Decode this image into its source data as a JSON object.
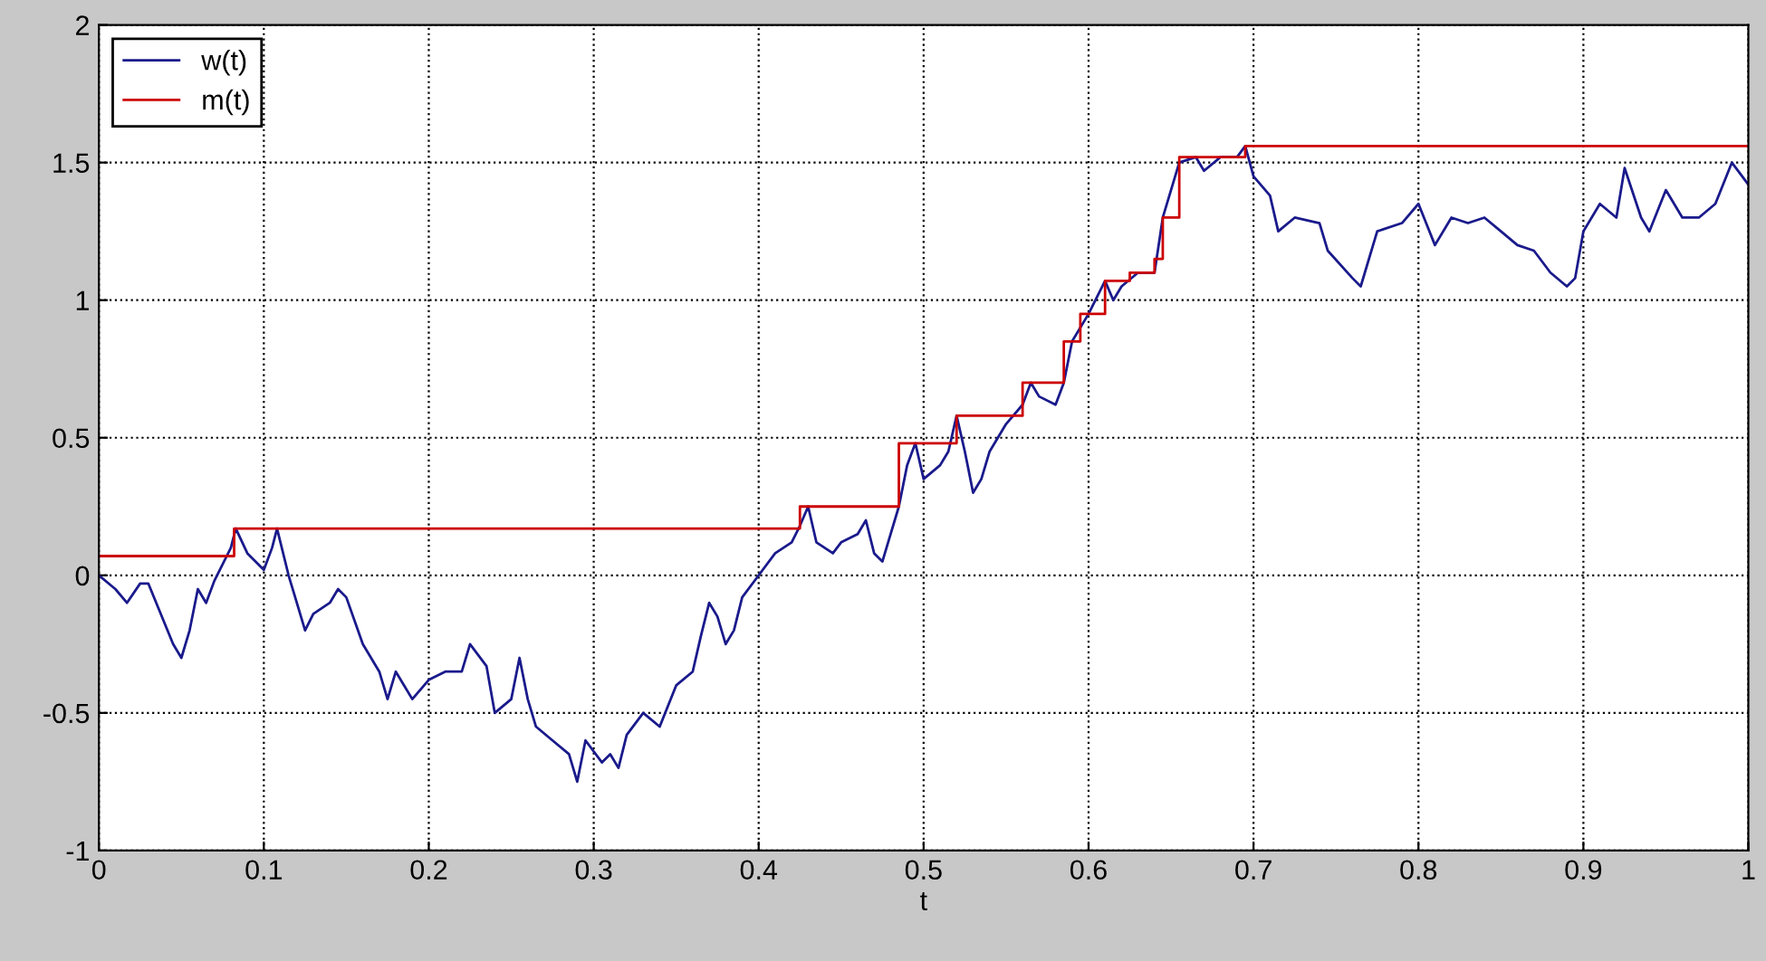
{
  "chart_data": {
    "type": "line",
    "xlabel": "t",
    "xlim": [
      0,
      1
    ],
    "ylim": [
      -1,
      2
    ],
    "xticks": [
      0,
      0.1,
      0.2,
      0.3,
      0.4,
      0.5,
      0.6,
      0.7,
      0.8,
      0.9,
      1
    ],
    "yticks": [
      -1,
      -0.5,
      0,
      0.5,
      1,
      1.5,
      2
    ],
    "grid": true,
    "legend": "top left",
    "line_style": "solid",
    "series": [
      {
        "name": "w(t)",
        "color": "#1a1a8c",
        "x": [
          0,
          0.01,
          0.017,
          0.025,
          0.03,
          0.045,
          0.05,
          0.055,
          0.06,
          0.065,
          0.07,
          0.08,
          0.083,
          0.09,
          0.1,
          0.105,
          0.108,
          0.115,
          0.12,
          0.125,
          0.13,
          0.14,
          0.145,
          0.15,
          0.16,
          0.17,
          0.175,
          0.18,
          0.19,
          0.2,
          0.21,
          0.22,
          0.225,
          0.235,
          0.24,
          0.25,
          0.255,
          0.26,
          0.265,
          0.275,
          0.285,
          0.29,
          0.295,
          0.305,
          0.31,
          0.315,
          0.32,
          0.33,
          0.34,
          0.35,
          0.36,
          0.365,
          0.37,
          0.375,
          0.38,
          0.385,
          0.39,
          0.4,
          0.41,
          0.42,
          0.425,
          0.43,
          0.435,
          0.445,
          0.45,
          0.46,
          0.465,
          0.47,
          0.475,
          0.48,
          0.485,
          0.49,
          0.495,
          0.5,
          0.51,
          0.515,
          0.52,
          0.525,
          0.53,
          0.535,
          0.54,
          0.55,
          0.56,
          0.565,
          0.57,
          0.58,
          0.585,
          0.59,
          0.6,
          0.61,
          0.615,
          0.62,
          0.63,
          0.64,
          0.645,
          0.655,
          0.665,
          0.67,
          0.68,
          0.69,
          0.695,
          0.7,
          0.71,
          0.715,
          0.725,
          0.74,
          0.745,
          0.76,
          0.765,
          0.775,
          0.79,
          0.8,
          0.81,
          0.82,
          0.83,
          0.84,
          0.85,
          0.86,
          0.87,
          0.88,
          0.89,
          0.895,
          0.9,
          0.91,
          0.92,
          0.925,
          0.935,
          0.94,
          0.95,
          0.96,
          0.97,
          0.98,
          0.99,
          1.0
        ],
        "values": [
          0.0,
          -0.05,
          -0.1,
          -0.03,
          -0.03,
          -0.25,
          -0.3,
          -0.2,
          -0.05,
          -0.1,
          -0.02,
          0.1,
          0.17,
          0.08,
          0.02,
          0.1,
          0.17,
          0.0,
          -0.1,
          -0.2,
          -0.14,
          -0.1,
          -0.05,
          -0.08,
          -0.25,
          -0.35,
          -0.45,
          -0.35,
          -0.45,
          -0.38,
          -0.35,
          -0.35,
          -0.25,
          -0.33,
          -0.5,
          -0.45,
          -0.3,
          -0.45,
          -0.55,
          -0.6,
          -0.65,
          -0.75,
          -0.6,
          -0.68,
          -0.65,
          -0.7,
          -0.58,
          -0.5,
          -0.55,
          -0.4,
          -0.35,
          -0.22,
          -0.1,
          -0.15,
          -0.25,
          -0.2,
          -0.08,
          0.0,
          0.08,
          0.12,
          0.18,
          0.25,
          0.12,
          0.08,
          0.12,
          0.15,
          0.2,
          0.08,
          0.05,
          0.15,
          0.25,
          0.4,
          0.48,
          0.35,
          0.4,
          0.45,
          0.58,
          0.45,
          0.3,
          0.35,
          0.45,
          0.55,
          0.62,
          0.7,
          0.65,
          0.62,
          0.7,
          0.85,
          0.95,
          1.07,
          1.0,
          1.05,
          1.1,
          1.1,
          1.3,
          1.5,
          1.52,
          1.47,
          1.52,
          1.52,
          1.56,
          1.45,
          1.38,
          1.25,
          1.3,
          1.28,
          1.18,
          1.08,
          1.05,
          1.25,
          1.28,
          1.35,
          1.2,
          1.3,
          1.28,
          1.3,
          1.25,
          1.2,
          1.18,
          1.1,
          1.05,
          1.08,
          1.25,
          1.35,
          1.3,
          1.48,
          1.3,
          1.25,
          1.4,
          1.3,
          1.3,
          1.35,
          1.5,
          1.42
        ]
      },
      {
        "name": "m(t)",
        "color": "#cc0000",
        "type": "step",
        "x": [
          0,
          0.082,
          0.425,
          0.485,
          0.52,
          0.56,
          0.585,
          0.595,
          0.61,
          0.625,
          0.64,
          0.645,
          0.655,
          0.695,
          1.0
        ],
        "values": [
          0.07,
          0.17,
          0.25,
          0.48,
          0.58,
          0.7,
          0.85,
          0.95,
          1.07,
          1.1,
          1.15,
          1.3,
          1.52,
          1.56,
          1.56
        ]
      }
    ]
  }
}
